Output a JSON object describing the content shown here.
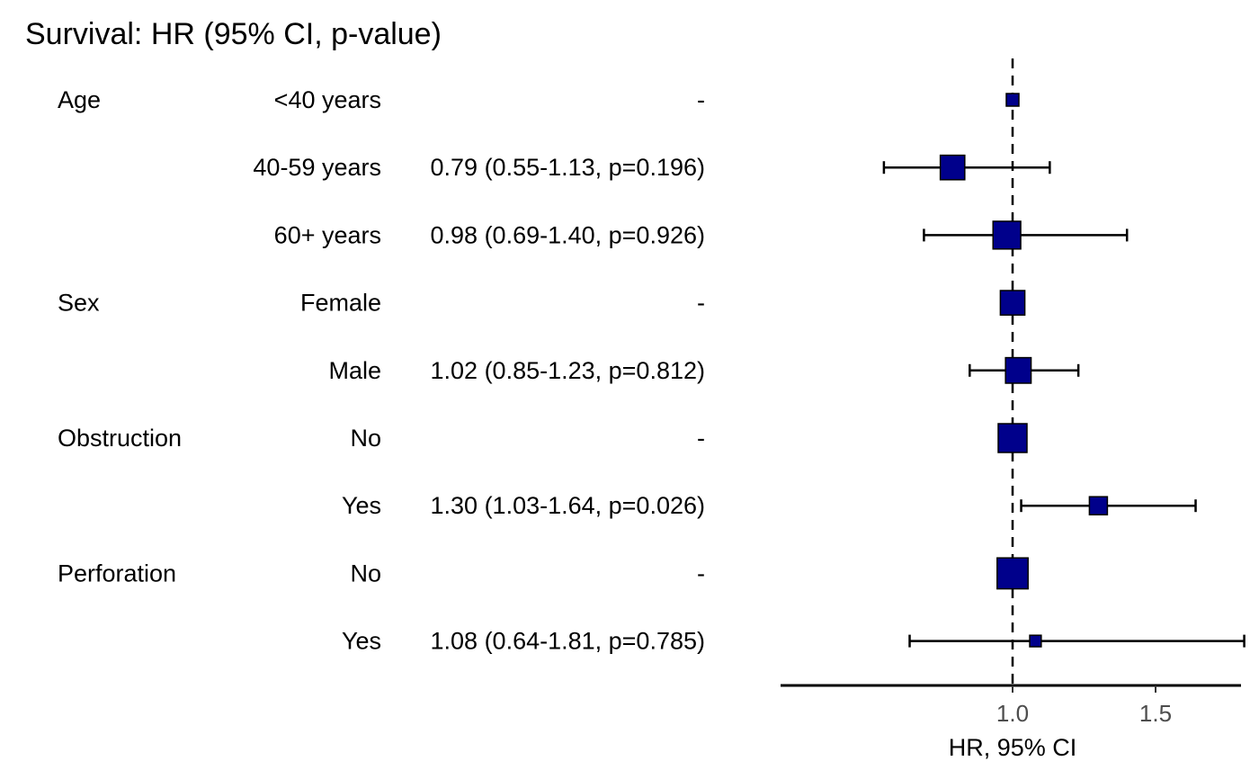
{
  "chart_data": {
    "type": "forest",
    "title": "Survival: HR (95% CI, p-value)",
    "xlabel": "HR, 95% CI",
    "xlim": [
      0.55,
      1.81
    ],
    "x_ticks": [
      "1.0",
      "1.5"
    ],
    "x_tick_values": [
      1.0,
      1.5
    ],
    "reference_line": 1.0,
    "marker_color": "#00008B",
    "rows": [
      {
        "variable": "Age",
        "level": "<40 years",
        "label": "-",
        "hr": 1.0,
        "lower": null,
        "upper": null,
        "weight": 0.25
      },
      {
        "variable": "",
        "level": "40-59 years",
        "label": "0.79 (0.55-1.13, p=0.196)",
        "hr": 0.79,
        "lower": 0.55,
        "upper": 1.13,
        "weight": 0.8
      },
      {
        "variable": "",
        "level": "60+ years",
        "label": "0.98 (0.69-1.40, p=0.926)",
        "hr": 0.98,
        "lower": 0.69,
        "upper": 1.4,
        "weight": 0.95
      },
      {
        "variable": "Sex",
        "level": "Female",
        "label": "-",
        "hr": 1.0,
        "lower": null,
        "upper": null,
        "weight": 0.8
      },
      {
        "variable": "",
        "level": "Male",
        "label": "1.02 (0.85-1.23, p=0.812)",
        "hr": 1.02,
        "lower": 0.85,
        "upper": 1.23,
        "weight": 0.85
      },
      {
        "variable": "Obstruction",
        "level": "No",
        "label": "-",
        "hr": 1.0,
        "lower": null,
        "upper": null,
        "weight": 1.0
      },
      {
        "variable": "",
        "level": "Yes",
        "label": "1.30 (1.03-1.64, p=0.026)",
        "hr": 1.3,
        "lower": 1.03,
        "upper": 1.64,
        "weight": 0.5
      },
      {
        "variable": "Perforation",
        "level": "No",
        "label": "-",
        "hr": 1.0,
        "lower": null,
        "upper": null,
        "weight": 1.1
      },
      {
        "variable": "",
        "level": "Yes",
        "label": "1.08 (0.64-1.81, p=0.785)",
        "hr": 1.08,
        "lower": 0.64,
        "upper": 1.81,
        "weight": 0.2
      }
    ]
  }
}
